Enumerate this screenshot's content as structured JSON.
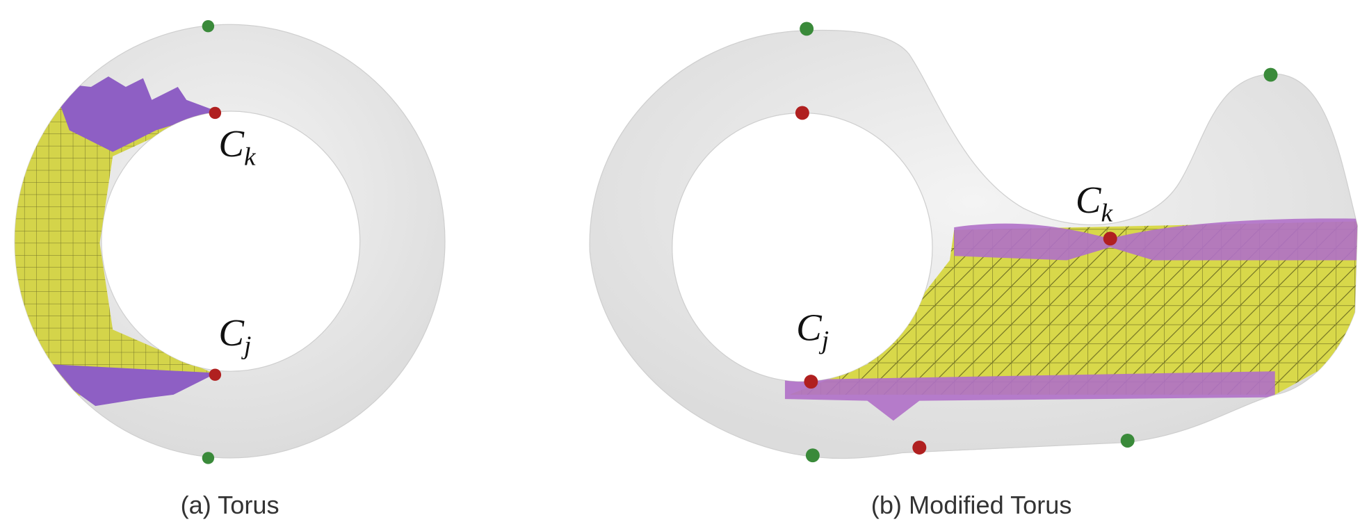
{
  "panels": [
    {
      "caption": "(a) Torus",
      "labels": [
        {
          "base": "C",
          "sub": "k"
        },
        {
          "base": "C",
          "sub": "j"
        }
      ]
    },
    {
      "caption": "(b) Modified Torus",
      "labels": [
        {
          "base": "C",
          "sub": "k"
        },
        {
          "base": "C",
          "sub": "j"
        }
      ]
    }
  ]
}
